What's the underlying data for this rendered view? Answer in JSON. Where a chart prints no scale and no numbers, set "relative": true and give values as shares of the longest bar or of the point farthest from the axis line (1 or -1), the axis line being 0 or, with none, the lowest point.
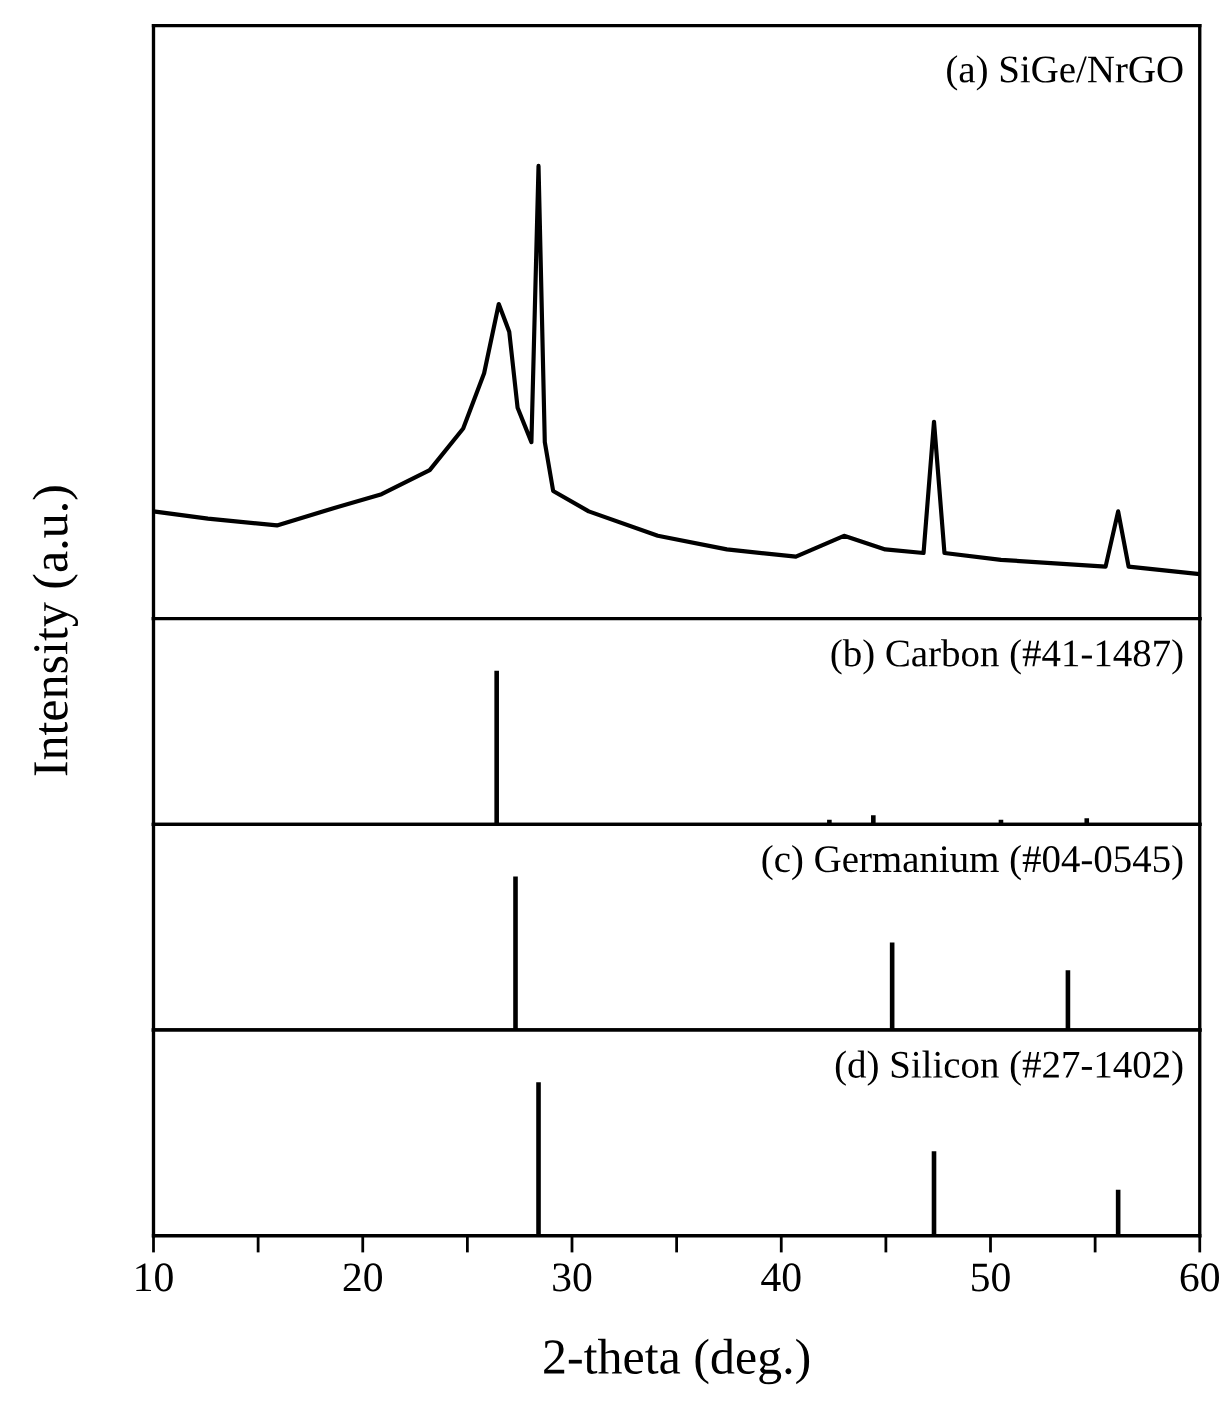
{
  "chart_data": [
    {
      "type": "line",
      "relative": true,
      "color": "#000000",
      "ylabel": "Intensity (a.u.)",
      "annotations": [
        "(a) SiGe/NrGO"
      ],
      "xlim": [
        10,
        60
      ],
      "tick_labels": false,
      "x": [
        10.0,
        12.6,
        15.9,
        18.6,
        20.9,
        23.2,
        24.8,
        25.8,
        26.5,
        27.0,
        27.4,
        28.06,
        28.4,
        28.7,
        29.1,
        30.8,
        34.1,
        37.4,
        40.7,
        43.0,
        44.97,
        46.8,
        47.3,
        47.8,
        50.5,
        55.5,
        56.1,
        56.6,
        59.9
      ],
      "values": [
        0.237,
        0.221,
        0.206,
        0.244,
        0.275,
        0.328,
        0.42,
        0.542,
        0.695,
        0.634,
        0.466,
        0.39,
        1.0,
        0.39,
        0.282,
        0.237,
        0.183,
        0.153,
        0.137,
        0.183,
        0.153,
        0.145,
        0.435,
        0.145,
        0.13,
        0.115,
        0.237,
        0.115,
        0.099
      ]
    },
    {
      "type": "bar",
      "relative": true,
      "color": "#000000",
      "annotations": [
        "(b) Carbon (#41-1487)"
      ],
      "xlim": [
        10,
        60
      ],
      "tick_labels": false,
      "x": [
        26.4,
        42.3,
        44.4,
        50.5,
        54.6
      ],
      "values": [
        1.0,
        0.03,
        0.06,
        0.03,
        0.04
      ]
    },
    {
      "type": "bar",
      "relative": true,
      "color": "#000000",
      "annotations": [
        "(c) Germanium (#04-0545)"
      ],
      "xlim": [
        10,
        60
      ],
      "tick_labels": false,
      "x": [
        27.3,
        45.3,
        53.7
      ],
      "values": [
        1.0,
        0.57,
        0.39
      ]
    },
    {
      "type": "bar",
      "relative": true,
      "color": "#000000",
      "annotations": [
        "(d) Silicon (#27-1402)"
      ],
      "xlim": [
        10,
        60
      ],
      "tick_labels": "x",
      "xlabel": "2-theta (deg.)",
      "xticks": [
        10,
        {
          "value": 15,
          "label": null
        },
        20,
        {
          "value": 25,
          "label": null
        },
        30,
        {
          "value": 35,
          "label": null
        },
        40,
        {
          "value": 45,
          "label": null
        },
        50,
        {
          "value": 55,
          "label": null
        },
        60
      ],
      "x": [
        28.4,
        47.3,
        56.1
      ],
      "values": [
        1.0,
        0.55,
        0.3
      ]
    }
  ]
}
